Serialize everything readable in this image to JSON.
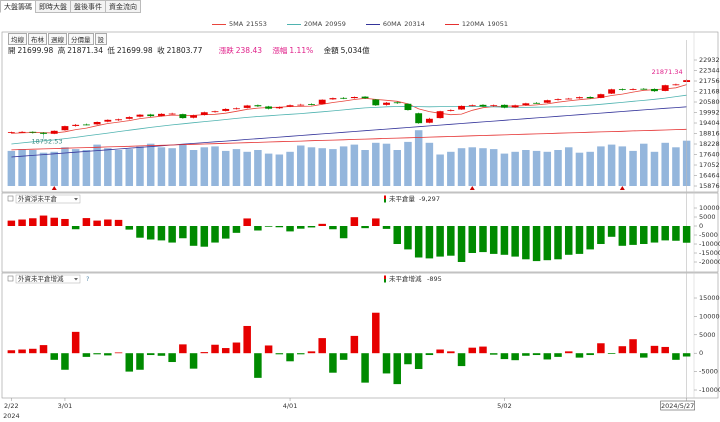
{
  "tabs": [
    "大盤籌碼",
    "即時大盤",
    "盤後事件",
    "資金流向"
  ],
  "toolbar": [
    "均線",
    "布林",
    "週線",
    "分價量",
    "設"
  ],
  "chart_data": [
    {
      "type": "candlestick",
      "categories": [
        "2/22",
        null,
        null,
        null,
        null,
        "3/01",
        null,
        null,
        null,
        null,
        null,
        null,
        null,
        null,
        null,
        null,
        null,
        null,
        null,
        null,
        null,
        null,
        null,
        null,
        null,
        null,
        "4/01",
        null,
        null,
        null,
        null,
        null,
        null,
        null,
        null,
        null,
        null,
        null,
        null,
        null,
        null,
        null,
        null,
        null,
        null,
        null,
        "5/02",
        null,
        null,
        null,
        null,
        null,
        null,
        null,
        null,
        null,
        null,
        null,
        null,
        null,
        null,
        null,
        null,
        "2024/5/27"
      ],
      "year_label": "2024",
      "open": [
        18850,
        18890,
        18910,
        18860,
        18800,
        19000,
        19240,
        19320,
        19330,
        19480,
        19560,
        19640,
        19760,
        19880,
        19800,
        19920,
        19900,
        19700,
        19850,
        20020,
        20080,
        20200,
        20250,
        20400,
        20330,
        20230,
        20320,
        20410,
        20460,
        20470,
        20730,
        20810,
        20800,
        20880,
        20720,
        20420,
        20560,
        20480,
        19950,
        19420,
        19680,
        20090,
        20160,
        20380,
        20420,
        20350,
        20420,
        20280,
        20410,
        20530,
        20540,
        20700,
        20760,
        20790,
        20860,
        20810,
        21050,
        21300,
        21270,
        21320,
        21310,
        21200,
        21530,
        21699.98
      ],
      "high": [
        18920,
        18950,
        18940,
        18890,
        18990,
        19260,
        19350,
        19370,
        19490,
        19610,
        19650,
        19780,
        19900,
        19920,
        19950,
        19980,
        19930,
        19870,
        20040,
        20100,
        20230,
        20270,
        20420,
        20440,
        20360,
        20330,
        20440,
        20480,
        20500,
        20730,
        20830,
        20850,
        20890,
        20910,
        20750,
        20580,
        20600,
        20500,
        19980,
        19690,
        20090,
        20170,
        20390,
        20440,
        20460,
        20440,
        20450,
        20430,
        20540,
        20570,
        20710,
        20780,
        20810,
        20890,
        20900,
        21050,
        21320,
        21340,
        21350,
        21360,
        21340,
        21550,
        21610,
        21871.34
      ],
      "low": [
        18820,
        18860,
        18810,
        18752.53,
        18780,
        18970,
        19200,
        19270,
        19300,
        19440,
        19520,
        19600,
        19720,
        19740,
        19770,
        19870,
        19640,
        19660,
        19820,
        19980,
        20050,
        20160,
        20220,
        20300,
        20170,
        20190,
        20290,
        20370,
        20400,
        20450,
        20700,
        20740,
        20770,
        20750,
        20360,
        20380,
        20470,
        20100,
        19360,
        19390,
        19650,
        20050,
        20140,
        20340,
        20290,
        20310,
        20230,
        20250,
        20380,
        20480,
        20520,
        20660,
        20720,
        20760,
        20760,
        20790,
        21030,
        21220,
        21240,
        21270,
        21150,
        21180,
        21500,
        21699.98
      ],
      "close": [
        18889,
        18906,
        18870,
        18797,
        18966,
        19230,
        19300,
        19310,
        19460,
        19580,
        19610,
        19735,
        19870,
        19790,
        19915,
        19930,
        19680,
        19830,
        20006,
        20060,
        20190,
        20225,
        20385,
        20340,
        20205,
        20294,
        20398,
        20428,
        20440,
        20708,
        20796,
        20786,
        20860,
        20790,
        20396,
        20540,
        20520,
        20130,
        19394,
        19640,
        20064,
        20127,
        20360,
        20396,
        20330,
        20397,
        20264,
        20394,
        20506,
        20520,
        20680,
        20737,
        20770,
        20850,
        20794,
        21016,
        21290,
        21259,
        21303,
        21304,
        21188,
        21521,
        21565,
        21803.77
      ],
      "volume": [
        3900,
        4100,
        4000,
        3700,
        3800,
        4300,
        4100,
        4000,
        4600,
        4200,
        4000,
        4100,
        4400,
        4700,
        4300,
        4200,
        4600,
        4000,
        4300,
        4400,
        3900,
        4100,
        3800,
        4000,
        3600,
        3500,
        3800,
        4500,
        4300,
        4200,
        4100,
        4400,
        4600,
        4000,
        4800,
        4700,
        4000,
        4900,
        6200,
        4800,
        3500,
        3800,
        4200,
        4300,
        4200,
        4100,
        3600,
        3800,
        4000,
        3900,
        3800,
        4000,
        4300,
        3700,
        3800,
        4400,
        4600,
        4400,
        3900,
        4700,
        3800,
        4800,
        4300,
        5034
      ],
      "volume_color": "#94b6dc",
      "vlim": [
        0,
        14000
      ],
      "series": [
        {
          "name": "5MA",
          "color": "#e8453c",
          "values": [
            18820,
            18850,
            18870,
            18860,
            18846,
            18914,
            19034,
            19121,
            19253,
            19376,
            19452,
            19539,
            19651,
            19717,
            19785,
            19848,
            19827,
            19829,
            19872,
            19891,
            19953,
            20062,
            20174,
            20241,
            20271,
            20290,
            20326,
            20333,
            20353,
            20454,
            20554,
            20632,
            20718,
            20788,
            20726,
            20676,
            20622,
            20475,
            20196,
            20045,
            19950,
            19871,
            19903,
            20117,
            20263,
            20322,
            20353,
            20356,
            20379,
            20416,
            20473,
            20567,
            20643,
            20711,
            20766,
            20833,
            20944,
            21022,
            21132,
            21234,
            21269,
            21315,
            21376,
            21553
          ]
        },
        {
          "name": "20MA",
          "color": "#4fb3b0",
          "values": [
            18230,
            18290,
            18350,
            18400,
            18460,
            18530,
            18600,
            18680,
            18760,
            18840,
            18920,
            19000,
            19080,
            19160,
            19230,
            19300,
            19360,
            19420,
            19480,
            19540,
            19600,
            19660,
            19720,
            19770,
            19810,
            19850,
            19890,
            19930,
            19980,
            20030,
            20080,
            20140,
            20200,
            20250,
            20280,
            20310,
            20330,
            20340,
            20320,
            20310,
            20320,
            20320,
            20330,
            20340,
            20330,
            20310,
            20290,
            20280,
            20280,
            20290,
            20300,
            20310,
            20330,
            20360,
            20400,
            20450,
            20510,
            20560,
            20620,
            20670,
            20730,
            20800,
            20880,
            20959
          ]
        },
        {
          "name": "60MA",
          "color": "#34349a",
          "values": [
            17500,
            17545,
            17589,
            17634,
            17679,
            17723,
            17768,
            17813,
            17857,
            17902,
            17947,
            17991,
            18036,
            18081,
            18125,
            18170,
            18215,
            18259,
            18304,
            18349,
            18393,
            18438,
            18483,
            18527,
            18572,
            18617,
            18661,
            18706,
            18751,
            18795,
            18840,
            18885,
            18929,
            18974,
            19019,
            19063,
            19108,
            19153,
            19197,
            19242,
            19287,
            19331,
            19376,
            19421,
            19465,
            19510,
            19555,
            19599,
            19644,
            19689,
            19733,
            19778,
            19823,
            19867,
            19912,
            19957,
            20001,
            20046,
            20091,
            20135,
            20180,
            20225,
            20269,
            20314
          ]
        },
        {
          "name": "120MA",
          "color": "#e53030",
          "values": [
            17900,
            17918,
            17937,
            17955,
            17973,
            17991,
            18010,
            18028,
            18046,
            18064,
            18083,
            18101,
            18119,
            18138,
            18156,
            18174,
            18192,
            18211,
            18229,
            18247,
            18265,
            18284,
            18302,
            18320,
            18338,
            18357,
            18375,
            18393,
            18412,
            18430,
            18448,
            18466,
            18485,
            18503,
            18521,
            18539,
            18558,
            18576,
            18594,
            18613,
            18631,
            18649,
            18667,
            18686,
            18704,
            18722,
            18740,
            18759,
            18777,
            18795,
            18813,
            18832,
            18850,
            18868,
            18887,
            18905,
            18923,
            18941,
            18960,
            18978,
            18996,
            19014,
            19033,
            19051
          ]
        }
      ],
      "up_color": "#e60000",
      "down_color": "#008a00",
      "ylim": [
        15876,
        22932
      ],
      "yticks": [
        22932,
        22344,
        21756,
        21168,
        20580,
        19992,
        19404,
        18816,
        18228,
        17640,
        17052,
        16464,
        15876
      ],
      "info": {
        "open_label": "開",
        "high_label": "高",
        "low_label": "低",
        "close_label": "收",
        "change_label": "漲跌",
        "change": 238.43,
        "change_pct_label": "漲幅",
        "change_pct": "1.11%",
        "amount_label": "金額",
        "amount": "5,034億"
      }
    },
    {
      "type": "bar",
      "title": "外資淨未平倉",
      "readout_label": "未平倉量",
      "readout_value": "-9,297",
      "values": [
        3000,
        3600,
        4300,
        5800,
        4600,
        3900,
        -1800,
        4400,
        3000,
        3600,
        3400,
        -2000,
        -6500,
        -7500,
        -8000,
        -9200,
        -6800,
        -11000,
        -11500,
        -9200,
        -7000,
        -3800,
        4200,
        -2500,
        -400,
        -700,
        -3000,
        -1500,
        -800,
        1200,
        -1800,
        -6800,
        4900,
        -1200,
        4200,
        -1600,
        -10000,
        -13000,
        -17500,
        -18000,
        -17000,
        -16500,
        -20000,
        -15000,
        -14500,
        -15500,
        -16000,
        -17000,
        -18500,
        -19500,
        -19000,
        -18500,
        -16000,
        -15500,
        -13000,
        -10000,
        -6000,
        -11000,
        -10500,
        -10000,
        -9200,
        -8000,
        -8200,
        -9297
      ],
      "up_color": "#e60000",
      "down_color": "#008a00",
      "ylim": [
        -20000,
        10000
      ],
      "yticks": [
        10000,
        5000,
        0,
        -5000,
        -10000,
        -15000,
        -20000
      ]
    },
    {
      "type": "bar",
      "title": "外資未平倉增減",
      "readout_label": "未平倉增減",
      "help": "?",
      "values": [
        800,
        1000,
        1200,
        2200,
        -1800,
        -4500,
        5800,
        -1000,
        -300,
        -600,
        200,
        -5000,
        -4500,
        -500,
        -700,
        -2400,
        2400,
        -4200,
        300,
        2300,
        1400,
        2900,
        7400,
        -6700,
        2100,
        -300,
        -2200,
        -300,
        500,
        4100,
        -5300,
        -1800,
        4700,
        -8000,
        11000,
        -5500,
        -8400,
        -3000,
        -4300,
        -500,
        1000,
        500,
        -3500,
        1500,
        1800,
        -400,
        -1600,
        -1900,
        -700,
        -500,
        -1700,
        -1000,
        500,
        -1200,
        -500,
        2700,
        -200,
        1900,
        3800,
        -1200,
        2000,
        1700,
        -1800,
        -895
      ],
      "up_color": "#e60000",
      "down_color": "#008a00",
      "ylim": [
        -10000,
        15000
      ],
      "yticks": [
        15000,
        10000,
        5000,
        0,
        -5000,
        -10000
      ]
    }
  ]
}
